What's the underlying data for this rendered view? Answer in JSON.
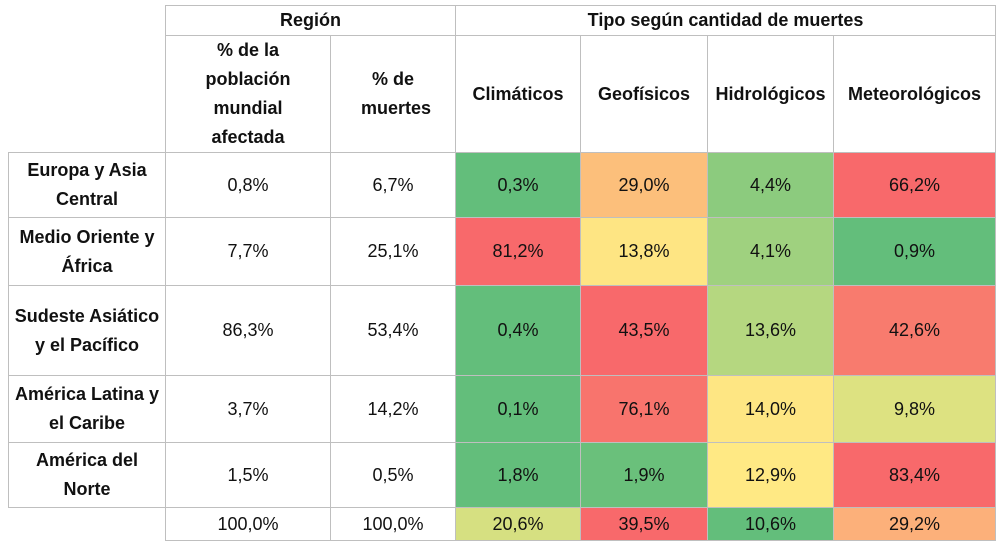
{
  "table": {
    "group_headers": [
      "Región",
      "Tipo según cantidad de muertes"
    ],
    "columns": [
      "% de la población mundial afectada",
      "% de muertes",
      "Climáticos",
      "Geofísicos",
      "Hidrológicos",
      "Meteorológicos"
    ],
    "rows": [
      {
        "label": "Europa y Asia Central",
        "cells": [
          "0,8%",
          "6,7%",
          "0,3%",
          "29,0%",
          "4,4%",
          "66,2%"
        ],
        "colors": [
          "#63be7b",
          "#fcbf7b",
          "#8ccb7e",
          "#f8696b"
        ]
      },
      {
        "label": "Medio Oriente y África",
        "cells": [
          "7,7%",
          "25,1%",
          "81,2%",
          "13,8%",
          "4,1%",
          "0,9%"
        ],
        "colors": [
          "#f8696b",
          "#fee583",
          "#9fd17f",
          "#63be7b"
        ]
      },
      {
        "label": "Sudeste Asiático y el Pacífico",
        "cells": [
          "86,3%",
          "53,4%",
          "0,4%",
          "43,5%",
          "13,6%",
          "42,6%"
        ],
        "colors": [
          "#63be7b",
          "#f8696b",
          "#b5d780",
          "#f87b6e"
        ]
      },
      {
        "label": "América Latina y el Caribe",
        "cells": [
          "3,7%",
          "14,2%",
          "0,1%",
          "76,1%",
          "14,0%",
          "9,8%"
        ],
        "colors": [
          "#63be7b",
          "#f8746d",
          "#fee683",
          "#dde281"
        ]
      },
      {
        "label": "América del Norte",
        "cells": [
          "1,5%",
          "0,5%",
          "1,8%",
          "1,9%",
          "12,9%",
          "83,4%"
        ],
        "colors": [
          "#63be7b",
          "#6ac07b",
          "#ffe984",
          "#f8696b"
        ]
      }
    ],
    "total": {
      "cells": [
        "100,0%",
        "100,0%",
        "20,6%",
        "39,5%",
        "10,6%",
        "29,2%"
      ],
      "colors": [
        "#d6e081",
        "#f8696b",
        "#63be7b",
        "#fcb07a"
      ]
    }
  }
}
